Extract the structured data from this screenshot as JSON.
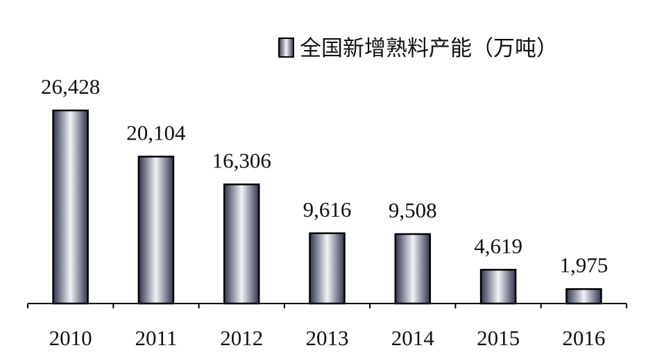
{
  "chart_data": {
    "type": "bar",
    "categories": [
      "2010",
      "2011",
      "2012",
      "2013",
      "2014",
      "2015",
      "2016"
    ],
    "series": [
      {
        "name": "全国新增熟料产能（万吨）",
        "values": [
          26428,
          20104,
          16306,
          9616,
          9508,
          4619,
          1975
        ]
      }
    ],
    "value_labels": [
      "26,428",
      "20,104",
      "16,306",
      "9,616",
      "9,508",
      "4,619",
      "1,975"
    ],
    "ylim": [
      0,
      26428
    ],
    "grid": false,
    "legend_position": "top-right",
    "bar_fill": {
      "edge": "#2f3550",
      "mid": "#f2f3f6",
      "stroke": "#000000"
    },
    "axis_color": "#000000"
  }
}
